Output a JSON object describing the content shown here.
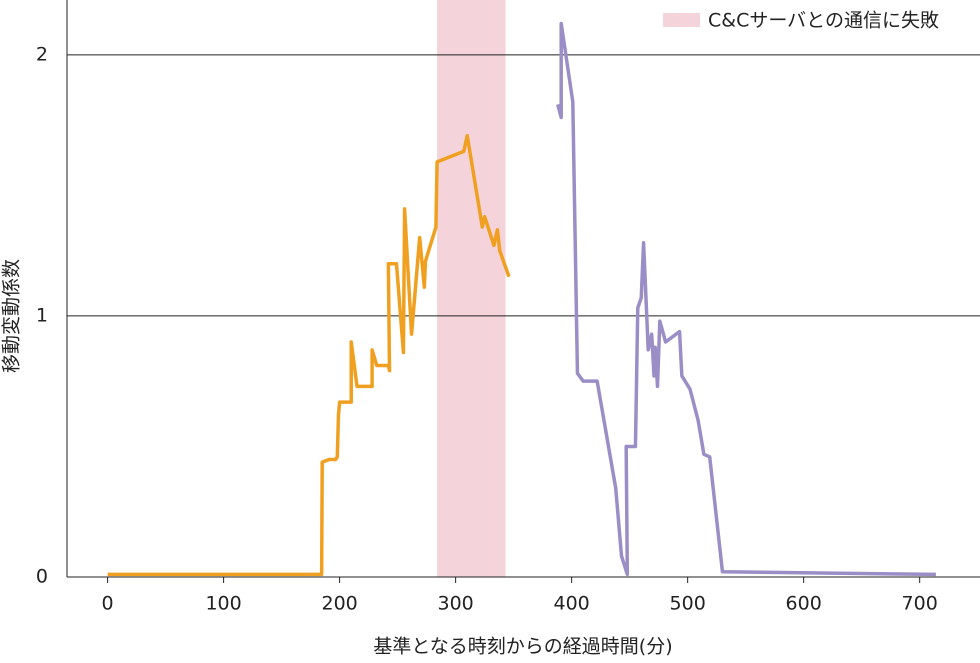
{
  "chart_data": {
    "type": "line",
    "xlabel": "基準となる時刻からの経過時間(分)",
    "ylabel": "移動変動係数",
    "xlim": [
      -35,
      752
    ],
    "ylim": [
      0,
      2.21
    ],
    "xticks": [
      0,
      100,
      200,
      300,
      400,
      500,
      600,
      700
    ],
    "yticks": [
      0,
      1,
      2
    ],
    "grid": true,
    "legend": "upper right",
    "shaded_regions": [
      {
        "label": "C&Cサーバとの通信に失敗",
        "color": "#f4d4da",
        "x": [
          284,
          343
        ]
      }
    ],
    "series": [
      {
        "color": "#f0a020",
        "x": [
          0,
          71,
          184.5,
          185,
          191,
          196.5,
          198,
          199,
          200,
          210,
          210,
          215,
          228,
          228,
          232,
          242,
          243,
          242,
          249,
          255,
          256,
          262,
          269,
          273,
          274,
          283,
          284,
          307,
          310,
          323,
          325,
          333,
          336,
          338,
          346
        ],
        "values": [
          0.01,
          0.01,
          0.01,
          0.44,
          0.45,
          0.45,
          0.46,
          0.62,
          0.67,
          0.67,
          0.9,
          0.73,
          0.73,
          0.87,
          0.81,
          0.81,
          0.79,
          1.2,
          1.2,
          0.86,
          1.41,
          0.93,
          1.3,
          1.11,
          1.21,
          1.34,
          1.59,
          1.63,
          1.69,
          1.34,
          1.38,
          1.27,
          1.33,
          1.25,
          1.15
        ]
      },
      {
        "color": "#9b8ec6",
        "x": [
          388,
          391,
          391,
          401,
          405,
          410,
          422,
          438,
          443,
          448,
          447,
          455,
          457,
          460,
          462,
          466,
          469,
          471,
          472,
          474,
          476,
          481,
          493,
          495,
          502,
          509,
          514,
          519,
          530,
          714
        ],
        "values": [
          1.81,
          1.76,
          2.12,
          1.82,
          0.78,
          0.75,
          0.75,
          0.34,
          0.08,
          0.01,
          0.5,
          0.5,
          1.03,
          1.07,
          1.28,
          0.87,
          0.93,
          0.77,
          0.88,
          0.73,
          0.98,
          0.9,
          0.94,
          0.77,
          0.72,
          0.6,
          0.47,
          0.46,
          0.02,
          0.01
        ]
      }
    ]
  }
}
